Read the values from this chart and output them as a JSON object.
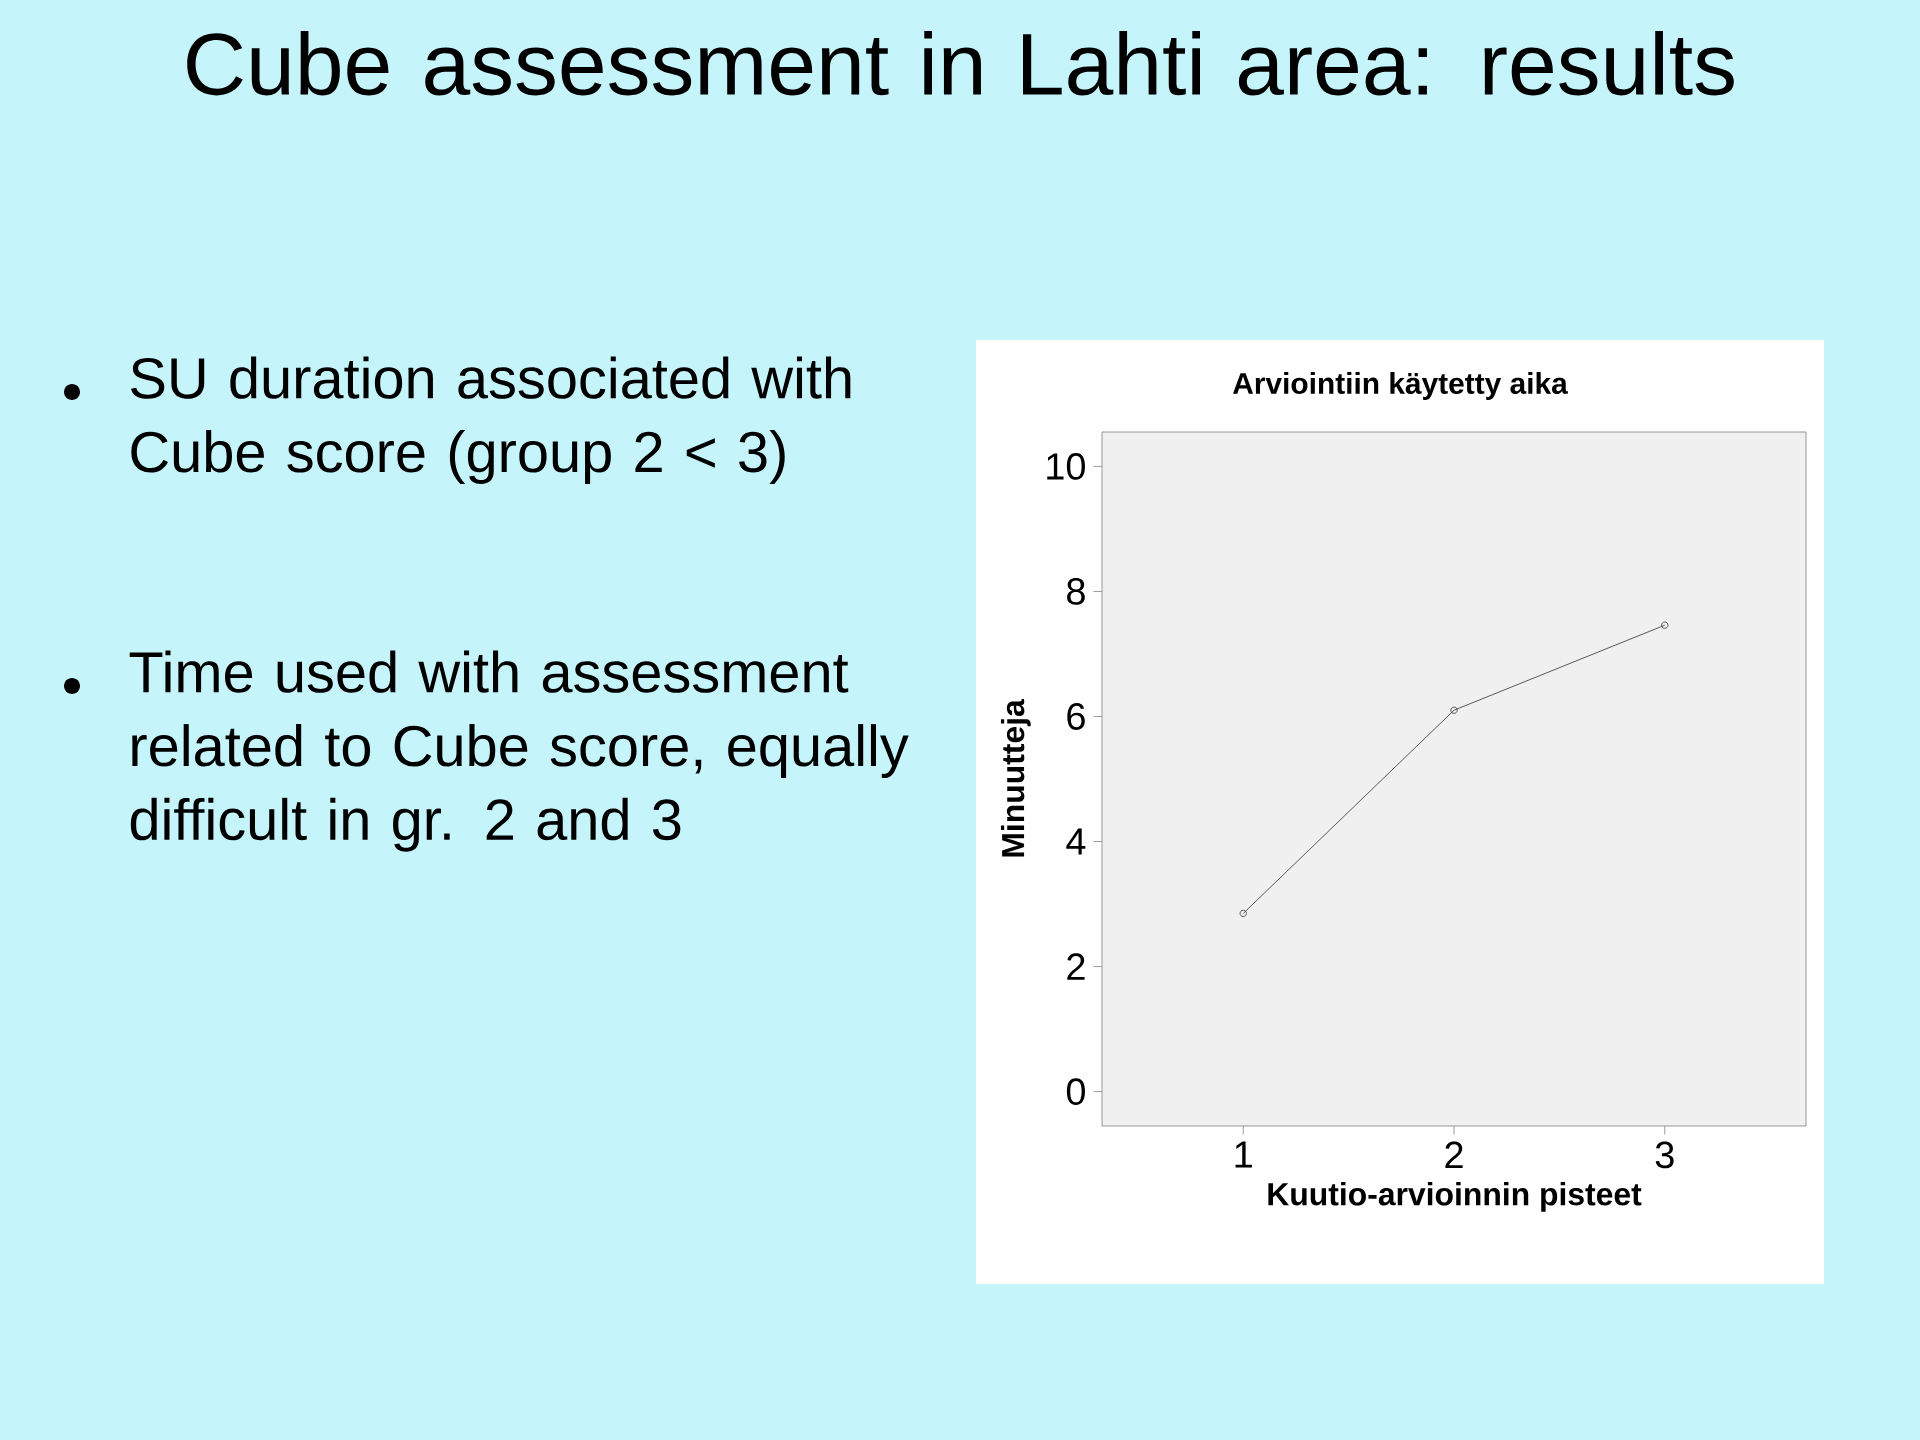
{
  "chart_data": {
    "type": "line",
    "title": "Cube assessment in Lahti area: results",
    "subtitle": "Arviointiin käytetty aika",
    "xlabel": "Kuutio-arvioinnin pisteet",
    "ylabel": "Minuutteja",
    "annotations": [
      "SU duration associated with Cube score (group 2 < 3)",
      "Time used with assessment related to Cube score, equally difficult in gr. 2 and 3"
    ],
    "x": [
      1,
      2,
      3
    ],
    "series": [
      {
        "color": "#333333",
        "values": [
          2.85,
          6.1,
          7.46
        ]
      }
    ],
    "xlim": [
      0.33,
      3.67
    ],
    "xticks": [
      1,
      2,
      3
    ],
    "ylim": [
      -0.55,
      10.55
    ],
    "yticks": [
      0,
      2,
      4,
      6,
      8,
      10
    ],
    "marker": "circle",
    "line_style": "solid",
    "grid": false
  }
}
